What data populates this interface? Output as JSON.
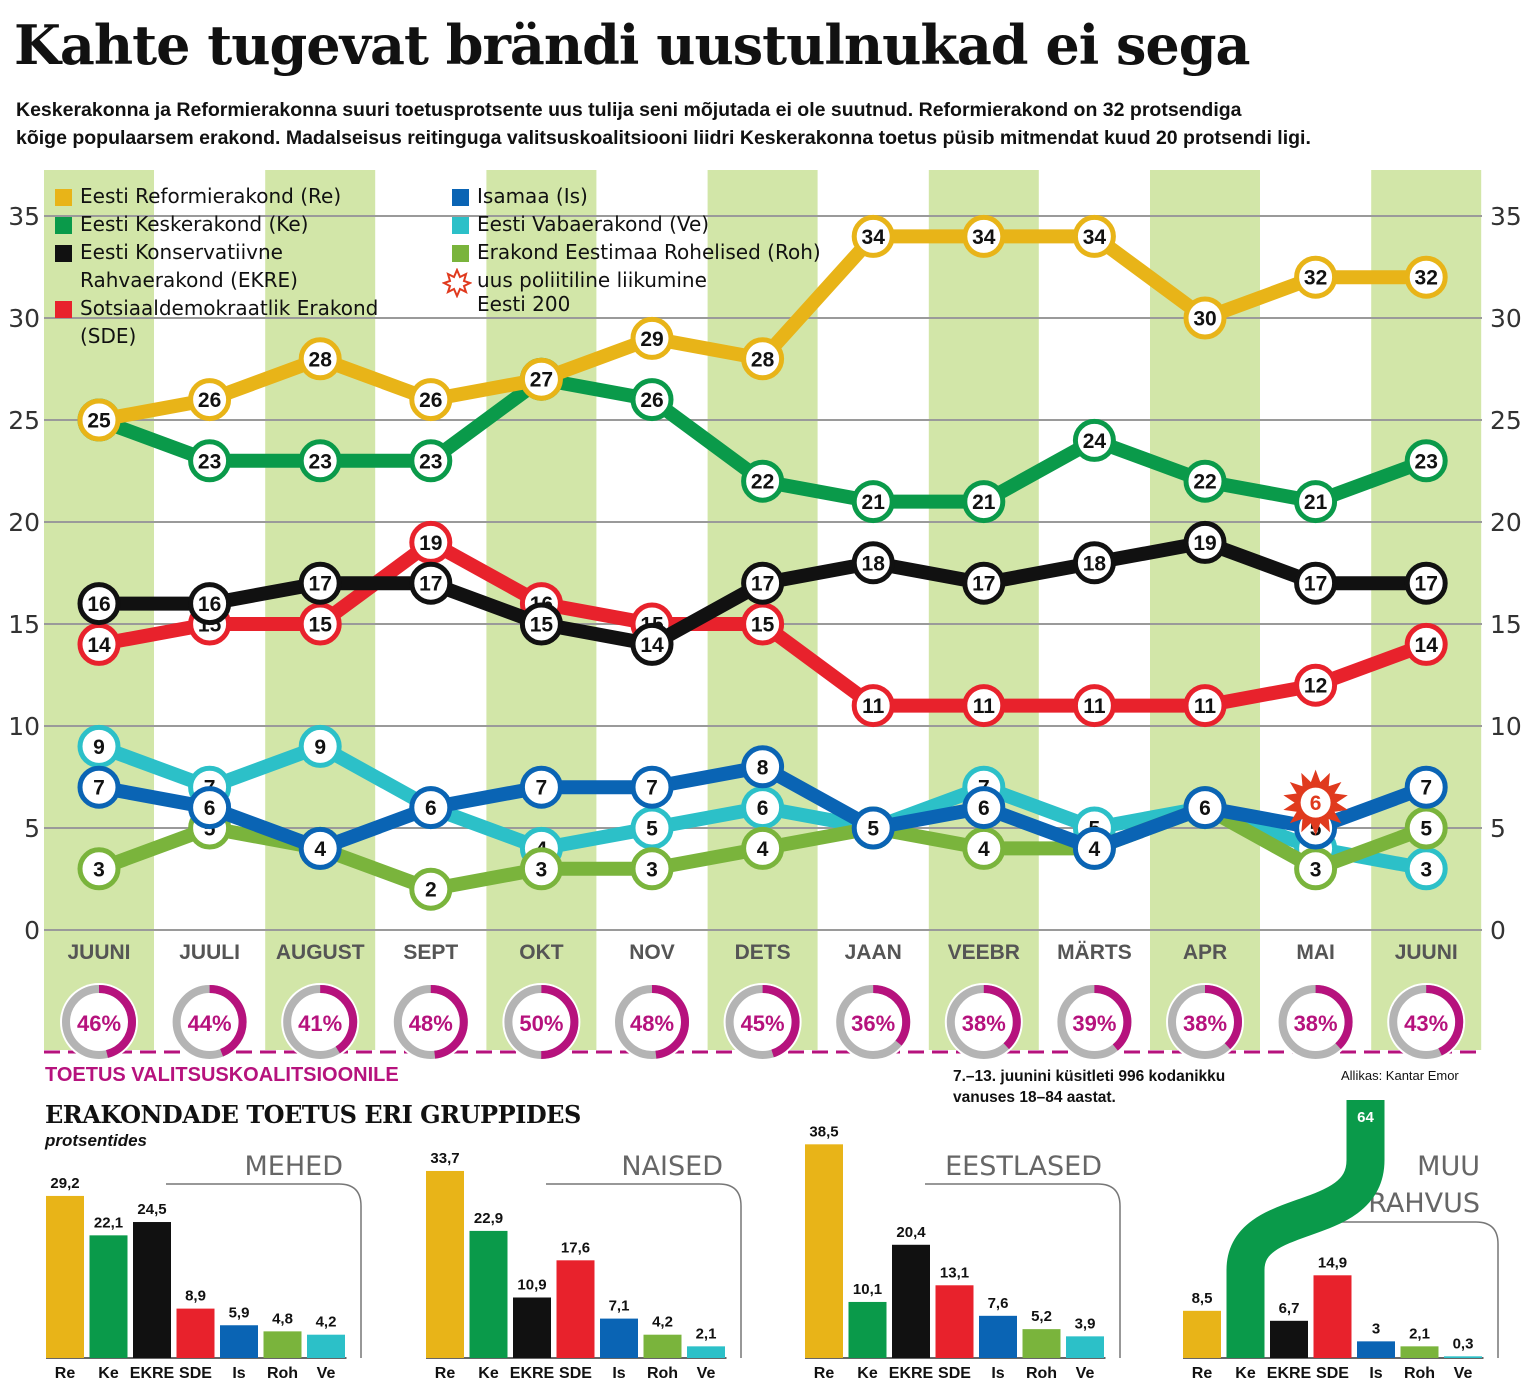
{
  "title": "Kahte tugevat brändi uustulnukad ei sega",
  "subtitle": [
    "Keskerakonna ja Reformierakonna suuri toetusprotsente uus tulija seni mõjutada ei ole suutnud. Reformierakond on 32 protsendiga",
    "kõige populaarsem erakond. Madalseisus reitinguga valitsuskoalitsiooni liidri Keskerakonna toetus püsib mitmendat kuud 20 protsendi ligi."
  ],
  "legend": [
    {
      "label": "Eesti Reformierakond (Re)",
      "color": "#e8b418",
      "type": "square"
    },
    {
      "label": "Eesti Keskerakond (Ke)",
      "color": "#0a9a4a",
      "type": "square"
    },
    {
      "label": "Eesti Konservatiivne",
      "label2": "Rahvaerakond (EKRE)",
      "color": "#111111",
      "type": "square"
    },
    {
      "label": "Sotsiaaldemokraatlik Erakond",
      "label2": "(SDE)",
      "color": "#e8222c",
      "type": "square"
    },
    {
      "label": "Isamaa (Is)",
      "color": "#0a64b4",
      "type": "square"
    },
    {
      "label": "Eesti Vabaerakond (Ve)",
      "color": "#2cc0c8",
      "type": "square"
    },
    {
      "label": "Erakond Eestimaa Rohelised (Roh)",
      "color": "#7ab43c",
      "type": "square"
    },
    {
      "label": "uus poliitiline liikumine",
      "label2": "Eesti 200",
      "color": "#e03a1e",
      "type": "star"
    }
  ],
  "chart_data": [
    {
      "type": "line",
      "title": "Kahte tugevat brändi uustulnukad ei sega",
      "categories": [
        "JUUNI",
        "JUULI",
        "AUGUST",
        "SEPT",
        "OKT",
        "NOV",
        "DETS",
        "JAAN",
        "VEEBR",
        "MÄRTS",
        "APR",
        "MAI",
        "JUUNI"
      ],
      "ylim": [
        0,
        35
      ],
      "yticks": [
        0,
        5,
        10,
        15,
        20,
        25,
        30,
        35
      ],
      "grid": true,
      "series": [
        {
          "name": "Eesti Vabaerakond (Ve)",
          "key": "Ve",
          "color": "#2cc0c8",
          "values": [
            9,
            7,
            9,
            6,
            4,
            5,
            6,
            5,
            7,
            5,
            6,
            4,
            3
          ]
        },
        {
          "name": "Erakond Eestimaa Rohelised (Roh)",
          "key": "Roh",
          "color": "#7ab43c",
          "values": [
            3,
            5,
            4,
            2,
            3,
            3,
            4,
            5,
            4,
            4,
            6,
            3,
            5
          ]
        },
        {
          "name": "Isamaa (Is)",
          "key": "Is",
          "color": "#0a64b4",
          "values": [
            7,
            6,
            4,
            6,
            7,
            7,
            8,
            5,
            6,
            4,
            6,
            5,
            7
          ]
        },
        {
          "name": "Sotsiaaldemokraatlik Erakond (SDE)",
          "key": "SDE",
          "color": "#e8222c",
          "values": [
            14,
            15,
            15,
            19,
            16,
            15,
            15,
            11,
            11,
            11,
            11,
            12,
            14
          ]
        },
        {
          "name": "Eesti Konservatiivne Rahvaerakond (EKRE)",
          "key": "EKRE",
          "color": "#111111",
          "values": [
            16,
            16,
            17,
            17,
            15,
            14,
            17,
            18,
            17,
            18,
            19,
            17,
            17
          ]
        },
        {
          "name": "Eesti Keskerakond (Ke)",
          "key": "Ke",
          "color": "#0a9a4a",
          "values": [
            25,
            23,
            23,
            23,
            27,
            26,
            22,
            21,
            21,
            24,
            22,
            21,
            23
          ]
        },
        {
          "name": "Eesti Reformierakond (Re)",
          "key": "Re",
          "color": "#e8b418",
          "values": [
            25,
            26,
            28,
            26,
            27,
            29,
            28,
            34,
            34,
            34,
            30,
            32,
            32
          ]
        }
      ],
      "special_points": [
        {
          "name": "Eesti 200",
          "category": "MAI",
          "value": 6,
          "color": "#e03a1e"
        }
      ]
    },
    {
      "type": "donut",
      "title": "TOETUS VALITSUSKOALITSIOONILE",
      "categories": [
        "JUUNI",
        "JUULI",
        "AUGUST",
        "SEPT",
        "OKT",
        "NOV",
        "DETS",
        "JAAN",
        "VEEBR",
        "MÄRTS",
        "APR",
        "MAI",
        "JUUNI"
      ],
      "values": [
        46,
        44,
        41,
        48,
        50,
        48,
        45,
        36,
        38,
        39,
        38,
        38,
        43
      ],
      "labels": [
        "46%",
        "44%",
        "41%",
        "48%",
        "50%",
        "48%",
        "45%",
        "36%",
        "38%",
        "39%",
        "38%",
        "38%",
        "43%"
      ],
      "color": "#b6127d",
      "rest_color": "#b4b4b4"
    },
    {
      "type": "bar",
      "title": "MEHED",
      "categories": [
        "Re",
        "Ke",
        "EKRE",
        "SDE",
        "Is",
        "Roh",
        "Ve"
      ],
      "values": [
        29.2,
        22.1,
        24.5,
        8.9,
        5.9,
        4.8,
        4.2
      ],
      "labels": [
        "29,2",
        "22,1",
        "24,5",
        "8,9",
        "5,9",
        "4,8",
        "4,2"
      ]
    },
    {
      "type": "bar",
      "title": "NAISED",
      "categories": [
        "Re",
        "Ke",
        "EKRE",
        "SDE",
        "Is",
        "Roh",
        "Ve"
      ],
      "values": [
        33.7,
        22.9,
        10.9,
        17.6,
        7.1,
        4.2,
        2.1
      ],
      "labels": [
        "33,7",
        "22,9",
        "10,9",
        "17,6",
        "7,1",
        "4,2",
        "2,1"
      ]
    },
    {
      "type": "bar",
      "title": "EESTLASED",
      "categories": [
        "Re",
        "Ke",
        "EKRE",
        "SDE",
        "Is",
        "Roh",
        "Ve"
      ],
      "values": [
        38.5,
        10.1,
        20.4,
        13.1,
        7.6,
        5.2,
        3.9
      ],
      "labels": [
        "38,5",
        "10,1",
        "20,4",
        "13,1",
        "7,6",
        "5,2",
        "3,9"
      ]
    },
    {
      "type": "bar",
      "title": "MUU RAHVUS",
      "title_lines": [
        "MUU",
        "RAHVUS"
      ],
      "categories": [
        "Re",
        "Ke",
        "EKRE",
        "SDE",
        "Is",
        "Roh",
        "Ve"
      ],
      "values": [
        8.5,
        64,
        6.7,
        14.9,
        3,
        2.1,
        0.3
      ],
      "labels": [
        "8,5",
        "64",
        "6,7",
        "14,9",
        "3",
        "2,1",
        "0,3"
      ]
    }
  ],
  "colors": {
    "Re": "#e8b418",
    "Ke": "#0a9a4a",
    "EKRE": "#111111",
    "SDE": "#e8222c",
    "Is": "#0a64b4",
    "Roh": "#7ab43c",
    "Ve": "#2cc0c8",
    "band": "#d2e6a8",
    "grid": "#9a9a9a",
    "axis_text": "#333333"
  },
  "coalition_label": "TOETUS VALITSUSKOALITSIOONILE",
  "note": [
    "7.–13. juunini küsitleti 996 kodanikku",
    "vanuses 18–84 aastat."
  ],
  "source": "Allikas: Kantar Emor",
  "groups_title": "ERAKONDADE TOETUS ERI GRUPPIDES",
  "groups_subtitle": "protsentides"
}
